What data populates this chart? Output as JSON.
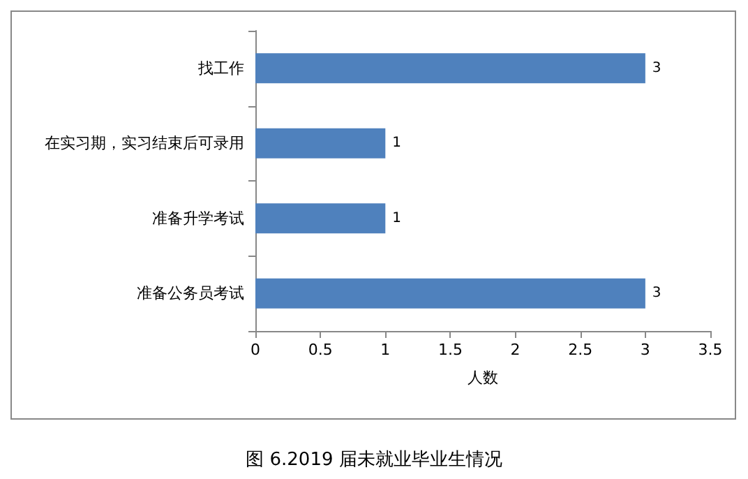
{
  "chart_data": {
    "type": "bar",
    "orientation": "horizontal",
    "title": "图 6.2019 届未就业毕业生情况",
    "xlabel": "人数",
    "categories": [
      "找工作",
      "在实习期，实习结束后可录用",
      "准备升学考试",
      "准备公务员考试"
    ],
    "values": [
      3,
      1,
      1,
      3
    ],
    "color": "#4f81bd",
    "xlim": [
      0,
      3.5
    ],
    "xticks": [
      0,
      0.5,
      1,
      1.5,
      2,
      2.5,
      3,
      3.5
    ],
    "data_labels": true
  }
}
